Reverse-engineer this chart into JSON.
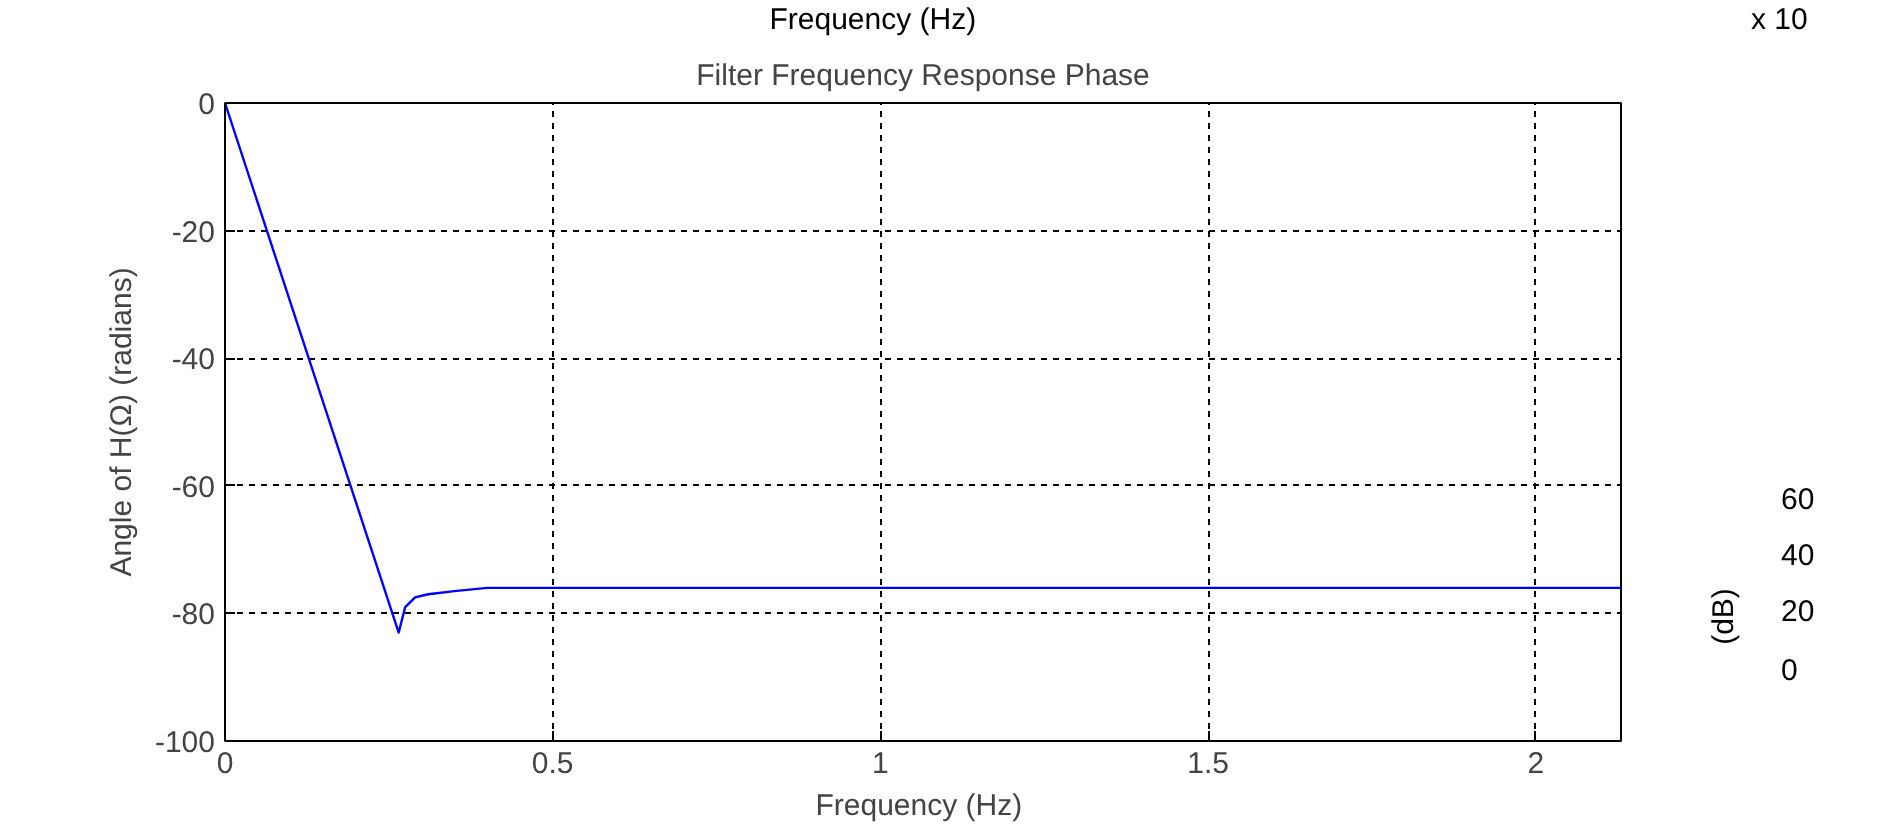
{
  "chart_data": {
    "type": "line",
    "title": "Filter Frequency Response Phase",
    "xlabel": "Frequency  (Hz)",
    "ylabel": "Angle of H(Ω) (radians)",
    "x": [
      0,
      0.265,
      0.275,
      0.29,
      0.31,
      0.35,
      0.4,
      0.5,
      0.7,
      1.0,
      1.3,
      1.5,
      1.8,
      2.0,
      2.13
    ],
    "series": [
      {
        "color": "#0000ff",
        "values": [
          0,
          -83,
          -79,
          -77.5,
          -77,
          -76.5,
          -76,
          -76,
          -76,
          -76,
          -76,
          -76,
          -76,
          -76,
          -76
        ]
      }
    ],
    "xlim": [
      0,
      2.13
    ],
    "xticks": [
      0,
      0.5,
      1,
      1.5,
      2
    ],
    "ylim": [
      -100,
      0
    ],
    "yticks": [
      -100,
      -80,
      -60,
      -40,
      -20,
      0
    ],
    "grid": true,
    "line_style": "solid",
    "marker": "none",
    "annotations": [
      "Frequency  (Hz)",
      "x 10",
      "60",
      "40",
      "20",
      "0",
      "(dB)"
    ]
  }
}
